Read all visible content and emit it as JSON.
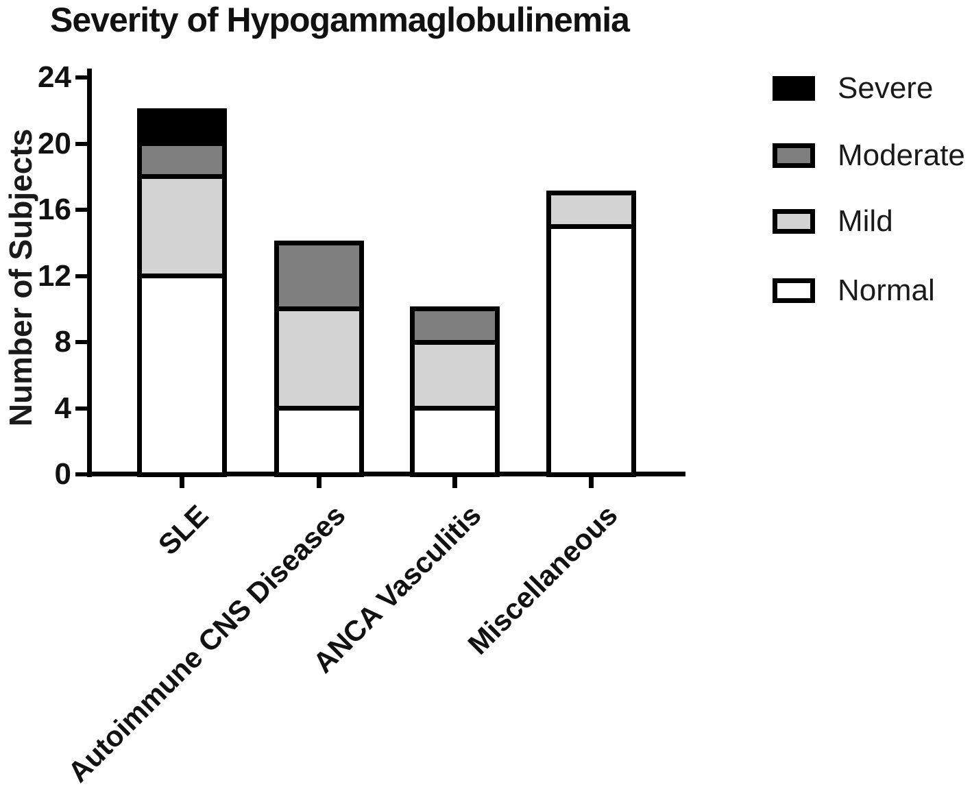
{
  "chart_data": {
    "type": "bar",
    "stacked": true,
    "title": "Severity of Hypogammaglobulinemia",
    "ylabel": "Number of Subjects",
    "xlabel": "",
    "ylim": [
      0,
      24
    ],
    "yticks": [
      0,
      4,
      8,
      12,
      16,
      20,
      24
    ],
    "categories": [
      "SLE",
      "Autoimmune CNS Diseases",
      "ANCA Vasculitis",
      "Miscellaneous"
    ],
    "series": [
      {
        "name": "Normal",
        "color": "#ffffff",
        "values": [
          12,
          4,
          4,
          15
        ]
      },
      {
        "name": "Mild",
        "color": "#d3d3d3",
        "values": [
          6,
          6,
          4,
          2
        ]
      },
      {
        "name": "Moderate",
        "color": "#7f7f7f",
        "values": [
          2,
          4,
          2,
          0
        ]
      },
      {
        "name": "Severe",
        "color": "#000000",
        "values": [
          2,
          0,
          0,
          0
        ]
      }
    ],
    "totals": [
      22,
      14,
      10,
      17
    ],
    "legend": {
      "position": "right",
      "order": [
        "Severe",
        "Moderate",
        "Mild",
        "Normal"
      ]
    },
    "bar_outline_color": "#000000",
    "axis_color": "#000000",
    "grid": "off"
  }
}
